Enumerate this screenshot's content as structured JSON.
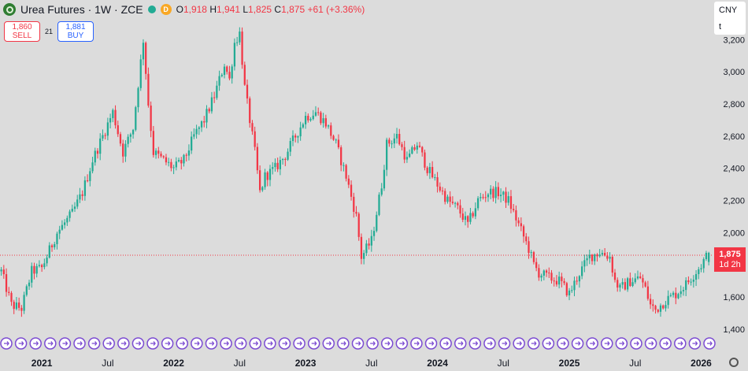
{
  "header": {
    "title": "Urea Futures · 1W · ZCE",
    "badge": "D",
    "o_key": "O",
    "o_val": "1,918",
    "h_key": "H",
    "h_val": "1,941",
    "l_key": "L",
    "l_val": "1,825",
    "c_key": "C",
    "c_val": "1,875",
    "change": "+61 (+3.36%)"
  },
  "trade": {
    "sell_price": "1,860",
    "sell_label": "SELL",
    "spread": "21",
    "buy_price": "1,881",
    "buy_label": "BUY"
  },
  "currency": {
    "code": "CNY",
    "unit": "t"
  },
  "last_price": {
    "value": "1,875",
    "countdown": "1d 2h"
  },
  "colors": {
    "up": "#22ab94",
    "down": "#f23645",
    "event": "#7b4bd1"
  },
  "chart_data": {
    "type": "candlestick",
    "interval": "1W",
    "y_ticks": [
      "1,400",
      "1,600",
      "1,800",
      "2,000",
      "2,200",
      "2,400",
      "2,600",
      "2,800",
      "3,000",
      "3,200"
    ],
    "y_tick_values": [
      1400,
      1600,
      1800,
      2000,
      2200,
      2400,
      2600,
      2800,
      3000,
      3200
    ],
    "ylim": [
      1400,
      3260
    ],
    "x_ticks": [
      "2021",
      "Jul",
      "2022",
      "Jul",
      "2023",
      "Jul",
      "2024",
      "Jul",
      "2025",
      "Jul",
      "2026"
    ],
    "x_tick_bars": [
      16,
      42,
      68,
      94,
      120,
      146,
      172,
      198,
      224,
      250,
      276
    ],
    "last_price_line": 1875,
    "event_markers": 49,
    "price_path": [
      [
        0,
        1760
      ],
      [
        4,
        1550
      ],
      [
        8,
        1530
      ],
      [
        12,
        1760
      ],
      [
        16,
        1780
      ],
      [
        22,
        2000
      ],
      [
        28,
        2120
      ],
      [
        32,
        2250
      ],
      [
        36,
        2450
      ],
      [
        40,
        2600
      ],
      [
        44,
        2750
      ],
      [
        48,
        2500
      ],
      [
        52,
        2650
      ],
      [
        56,
        3200
      ],
      [
        58,
        2800
      ],
      [
        60,
        2500
      ],
      [
        64,
        2450
      ],
      [
        68,
        2400
      ],
      [
        72,
        2450
      ],
      [
        76,
        2600
      ],
      [
        80,
        2700
      ],
      [
        84,
        2850
      ],
      [
        88,
        3050
      ],
      [
        90,
        2950
      ],
      [
        92,
        3180
      ],
      [
        94,
        3240
      ],
      [
        96,
        2900
      ],
      [
        98,
        2700
      ],
      [
        100,
        2500
      ],
      [
        102,
        2250
      ],
      [
        104,
        2350
      ],
      [
        108,
        2400
      ],
      [
        112,
        2480
      ],
      [
        116,
        2600
      ],
      [
        120,
        2720
      ],
      [
        124,
        2750
      ],
      [
        128,
        2680
      ],
      [
        132,
        2550
      ],
      [
        136,
        2350
      ],
      [
        140,
        2100
      ],
      [
        142,
        1850
      ],
      [
        146,
        1950
      ],
      [
        150,
        2300
      ],
      [
        152,
        2550
      ],
      [
        156,
        2600
      ],
      [
        160,
        2450
      ],
      [
        164,
        2550
      ],
      [
        168,
        2400
      ],
      [
        172,
        2300
      ],
      [
        176,
        2200
      ],
      [
        180,
        2150
      ],
      [
        184,
        2050
      ],
      [
        188,
        2200
      ],
      [
        192,
        2250
      ],
      [
        196,
        2250
      ],
      [
        200,
        2200
      ],
      [
        204,
        2050
      ],
      [
        208,
        1900
      ],
      [
        210,
        1800
      ],
      [
        212,
        1750
      ],
      [
        216,
        1720
      ],
      [
        220,
        1700
      ],
      [
        224,
        1620
      ],
      [
        228,
        1750
      ],
      [
        232,
        1850
      ],
      [
        236,
        1880
      ],
      [
        240,
        1850
      ],
      [
        242,
        1700
      ],
      [
        244,
        1650
      ],
      [
        248,
        1700
      ],
      [
        252,
        1720
      ],
      [
        254,
        1650
      ],
      [
        256,
        1550
      ],
      [
        258,
        1520
      ],
      [
        262,
        1580
      ],
      [
        266,
        1620
      ],
      [
        270,
        1680
      ],
      [
        272,
        1720
      ],
      [
        274,
        1760
      ],
      [
        276,
        1800
      ],
      [
        279,
        1875
      ]
    ]
  }
}
